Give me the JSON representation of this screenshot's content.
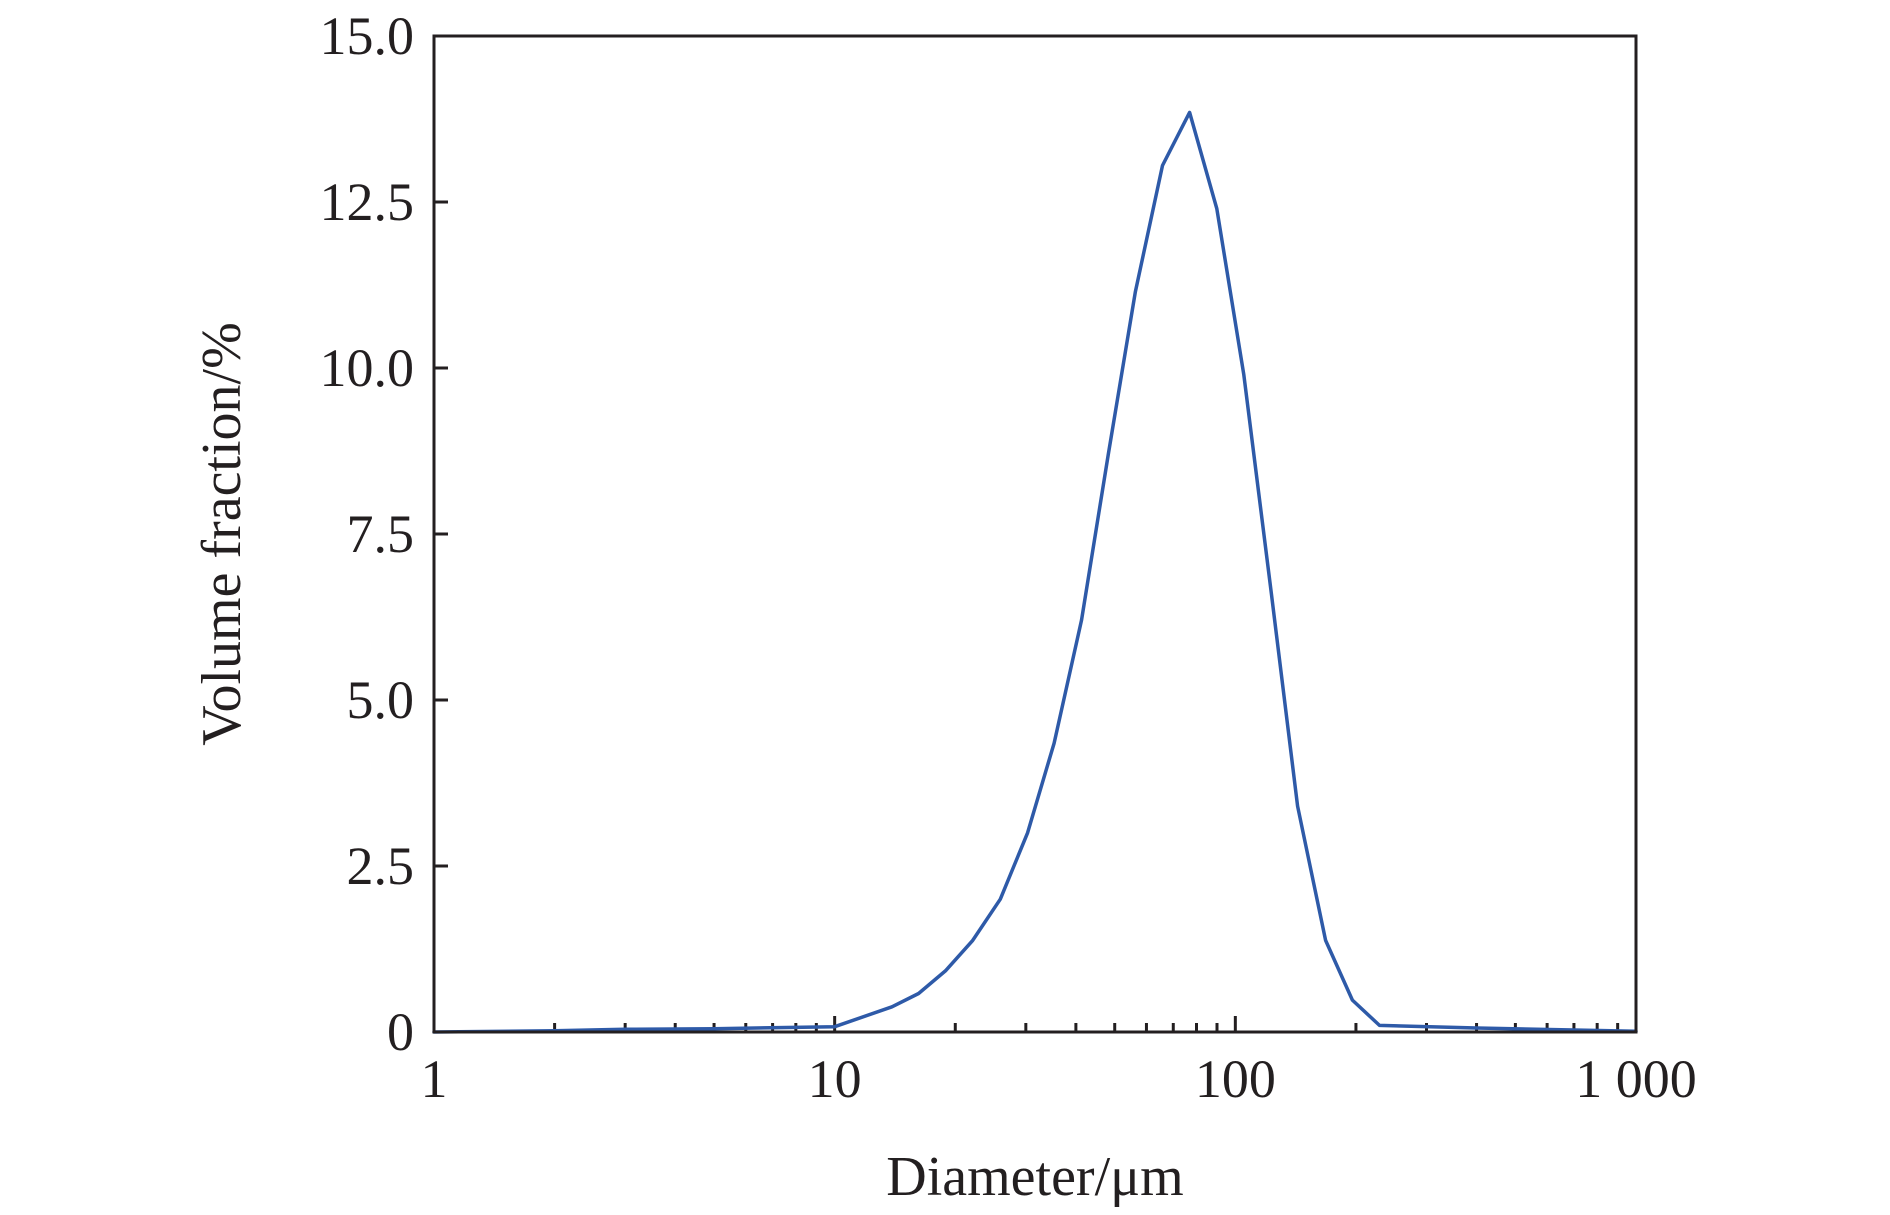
{
  "chart_data": {
    "type": "line",
    "title": "",
    "xlabel": "Diameter/μm",
    "ylabel": "Volume fraction/%",
    "xscale": "log",
    "xlim": [
      1,
      1000
    ],
    "ylim": [
      0,
      15
    ],
    "xticks": [
      1,
      10,
      100,
      1000
    ],
    "xtick_labels": [
      "1",
      "10",
      "100",
      "1 000"
    ],
    "yticks": [
      0,
      2.5,
      5,
      7.5,
      10,
      12.5,
      15
    ],
    "ytick_labels": [
      "0",
      "2.5",
      "5.0",
      "7.5",
      "10.0",
      "12.5",
      "15.0"
    ],
    "grid": false,
    "line_color": "#2e5aa8",
    "series": [
      {
        "x": [
          1,
          2,
          3,
          5,
          10,
          13.9,
          16.2,
          18.9,
          22.1,
          25.9,
          30.3,
          35.3,
          41.3,
          48.2,
          56.3,
          65.8,
          76.9,
          89.9,
          105,
          123,
          143,
          168,
          196,
          229,
          400,
          1000
        ],
        "y": [
          0,
          0.02,
          0.04,
          0.05,
          0.08,
          0.38,
          0.58,
          0.92,
          1.38,
          2.0,
          3.0,
          4.35,
          6.2,
          8.7,
          11.15,
          13.05,
          13.85,
          12.4,
          9.9,
          6.6,
          3.4,
          1.38,
          0.48,
          0.1,
          0.06,
          0.01
        ]
      }
    ]
  }
}
